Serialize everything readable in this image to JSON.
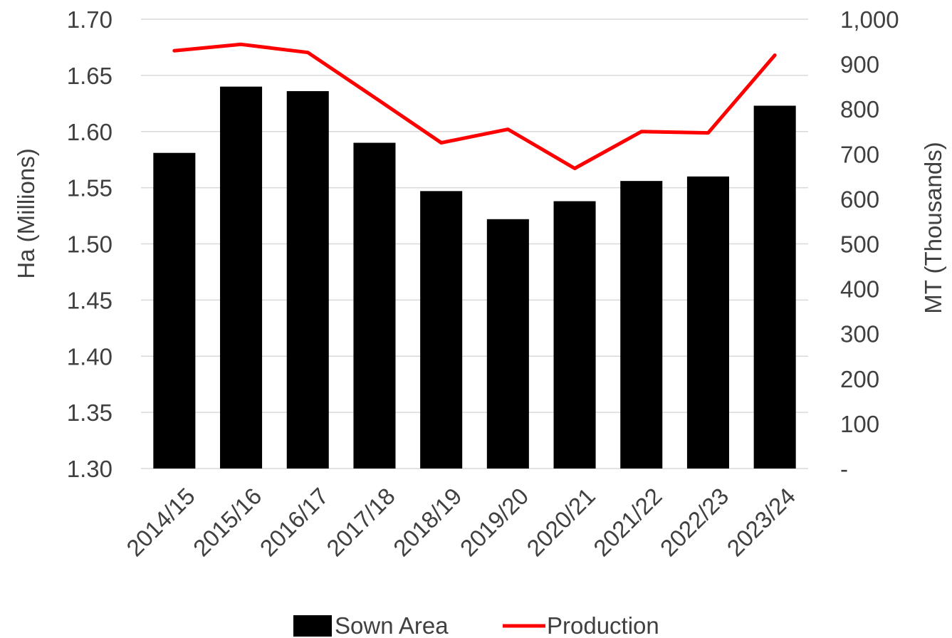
{
  "chart_data": {
    "type": "bar",
    "categories": [
      "2014/15",
      "2015/16",
      "2016/17",
      "2017/18",
      "2018/19",
      "2019/20",
      "2020/21",
      "2021/22",
      "2022/23",
      "2023/24"
    ],
    "series": [
      {
        "name": "Sown Area",
        "type": "bar",
        "axis": "left",
        "color": "#000000",
        "values": [
          1.581,
          1.64,
          1.636,
          1.59,
          1.547,
          1.522,
          1.538,
          1.556,
          1.56,
          1.623
        ]
      },
      {
        "name": "Production",
        "type": "line",
        "axis": "right",
        "color": "#ff0000",
        "values": [
          930,
          944,
          926,
          826,
          725,
          755,
          668,
          750,
          747,
          920
        ]
      }
    ],
    "y_left": {
      "label": "Ha (Millions)",
      "min": 1.3,
      "max": 1.7,
      "ticks": [
        "1.30",
        "1.35",
        "1.40",
        "1.45",
        "1.50",
        "1.55",
        "1.60",
        "1.65",
        "1.70"
      ]
    },
    "y_right": {
      "label": "MT (Thousands)",
      "min": 0,
      "max": 1000,
      "ticks": [
        "-",
        "100",
        "200",
        "300",
        "400",
        "500",
        "600",
        "700",
        "800",
        "900",
        "1,000"
      ]
    },
    "grid": true,
    "legend": {
      "position": "bottom"
    }
  }
}
